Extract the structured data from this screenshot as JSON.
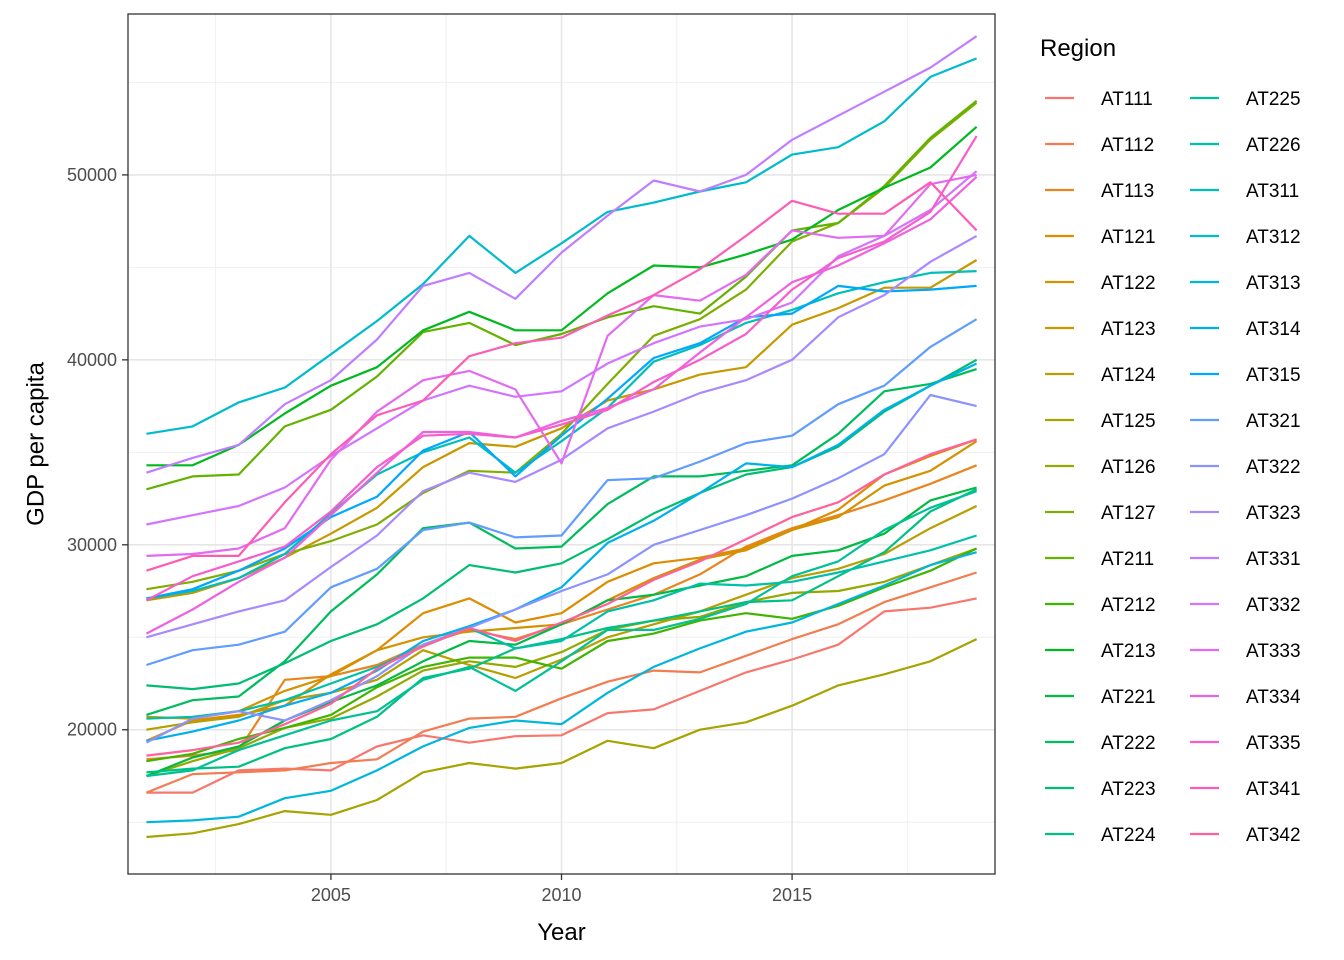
{
  "chart_data": {
    "type": "line",
    "xlabel": "Year",
    "ylabel": "GDP per capita",
    "legend_title": "Region",
    "legend_position": "right",
    "xlim": [
      2000.6,
      2019.4
    ],
    "ylim": [
      12200,
      58700
    ],
    "x_ticks": [
      2005,
      2010,
      2015
    ],
    "y_ticks": [
      20000,
      30000,
      40000,
      50000
    ],
    "grid": true,
    "x": [
      2001,
      2002,
      2003,
      2004,
      2005,
      2006,
      2007,
      2008,
      2009,
      2010,
      2011,
      2012,
      2013,
      2014,
      2015,
      2016,
      2017,
      2018,
      2019
    ],
    "series": [
      {
        "name": "AT111",
        "color": "#F8766D",
        "values": [
          16600,
          16600,
          17800,
          17900,
          17800,
          19100,
          19700,
          19300,
          19650,
          19700,
          20900,
          21100,
          22100,
          23100,
          23800,
          24600,
          26400,
          26600,
          27100
        ]
      },
      {
        "name": "AT112",
        "color": "#F17D51",
        "values": [
          16600,
          17600,
          17700,
          17800,
          18200,
          18400,
          19900,
          20600,
          20700,
          21700,
          22600,
          23200,
          23100,
          24000,
          24900,
          25700,
          26900,
          27700,
          28500
        ]
      },
      {
        "name": "AT113",
        "color": "#E8851E",
        "values": [
          18400,
          18600,
          18900,
          22700,
          22900,
          23500,
          24600,
          25400,
          24900,
          25700,
          26500,
          27300,
          28400,
          29900,
          30900,
          31600,
          32400,
          33300,
          34300
        ]
      },
      {
        "name": "AT121",
        "color": "#DE8C00",
        "values": [
          19400,
          20500,
          20800,
          21300,
          23000,
          24300,
          26300,
          27100,
          25800,
          26300,
          28000,
          29000,
          29300,
          29800,
          30800,
          31900,
          33800,
          34800,
          35700
        ]
      },
      {
        "name": "AT122",
        "color": "#D39200",
        "values": [
          20700,
          20600,
          21000,
          22100,
          22900,
          24300,
          25000,
          25300,
          25500,
          25700,
          27000,
          28200,
          29200,
          29700,
          30800,
          31500,
          33200,
          34000,
          35600
        ]
      },
      {
        "name": "AT123",
        "color": "#C69900",
        "values": [
          27000,
          27400,
          28200,
          29300,
          30600,
          32000,
          34200,
          35500,
          35300,
          36300,
          37800,
          38400,
          39200,
          39600,
          41900,
          42800,
          43900,
          43900,
          45400
        ]
      },
      {
        "name": "AT124",
        "color": "#B79F00",
        "values": [
          20000,
          20400,
          20700,
          21600,
          22000,
          22700,
          24300,
          23500,
          22800,
          23800,
          25000,
          25700,
          26400,
          27300,
          28200,
          28700,
          29500,
          30900,
          32100
        ]
      },
      {
        "name": "AT125",
        "color": "#A7A300",
        "values": [
          14200,
          14400,
          14900,
          15600,
          15400,
          16200,
          17700,
          18200,
          17900,
          18200,
          19400,
          19000,
          20000,
          20400,
          21300,
          22400,
          23000,
          23700,
          24900
        ]
      },
      {
        "name": "AT126",
        "color": "#94A900",
        "values": [
          17500,
          18300,
          19000,
          20100,
          20600,
          21800,
          23200,
          23700,
          23400,
          24200,
          25400,
          25900,
          26100,
          26900,
          27400,
          27500,
          28000,
          28900,
          29800
        ]
      },
      {
        "name": "AT127",
        "color": "#7FAE00",
        "values": [
          27600,
          28000,
          28600,
          29500,
          30200,
          31100,
          32800,
          34000,
          33900,
          36000,
          38700,
          41300,
          42200,
          43800,
          46400,
          47400,
          49300,
          51900,
          53900
        ]
      },
      {
        "name": "AT211",
        "color": "#64B200",
        "values": [
          33000,
          33700,
          33800,
          36400,
          37300,
          39100,
          41500,
          42000,
          40800,
          41400,
          42300,
          42900,
          42500,
          44500,
          47000,
          47400,
          49400,
          52000,
          54000
        ]
      },
      {
        "name": "AT212",
        "color": "#3EB500",
        "values": [
          18300,
          18700,
          19500,
          20100,
          20800,
          22300,
          23400,
          23900,
          23900,
          23300,
          24800,
          25200,
          25900,
          26300,
          26000,
          26700,
          27700,
          28600,
          29800
        ]
      },
      {
        "name": "AT213",
        "color": "#00B81F",
        "values": [
          34300,
          34300,
          35400,
          37100,
          38600,
          39600,
          41600,
          42600,
          41600,
          41600,
          43600,
          45100,
          45000,
          45700,
          46500,
          48100,
          49300,
          50400,
          52600
        ]
      },
      {
        "name": "AT221",
        "color": "#00BA42",
        "values": [
          17500,
          18500,
          19100,
          20500,
          21500,
          22400,
          23700,
          24800,
          24600,
          25700,
          27000,
          27300,
          27800,
          28300,
          29400,
          29700,
          30600,
          32400,
          33100
        ]
      },
      {
        "name": "AT222",
        "color": "#00BC5C",
        "values": [
          20800,
          21600,
          21800,
          23700,
          26400,
          28400,
          30900,
          31200,
          29800,
          29900,
          32200,
          33700,
          33700,
          34000,
          34300,
          36000,
          38300,
          38700,
          39500
        ]
      },
      {
        "name": "AT223",
        "color": "#00BE71",
        "values": [
          22400,
          22200,
          22500,
          23600,
          24800,
          25700,
          27100,
          28900,
          28500,
          29000,
          30300,
          31700,
          32800,
          33800,
          34200,
          35300,
          37200,
          38600,
          40000
        ]
      },
      {
        "name": "AT224",
        "color": "#00C084",
        "values": [
          17700,
          17900,
          18000,
          19000,
          19500,
          20700,
          22800,
          23300,
          24400,
          24900,
          25500,
          25900,
          26400,
          26900,
          27000,
          28300,
          29600,
          31800,
          33000
        ]
      },
      {
        "name": "AT225",
        "color": "#00C196",
        "values": [
          17500,
          17800,
          18900,
          19700,
          20500,
          21000,
          22700,
          23400,
          22100,
          23700,
          25400,
          25400,
          26000,
          26800,
          28300,
          29100,
          30800,
          32000,
          32900
        ]
      },
      {
        "name": "AT226",
        "color": "#00C0A8",
        "values": [
          20600,
          20700,
          21000,
          21600,
          22500,
          23400,
          24500,
          25500,
          24400,
          24800,
          26400,
          27000,
          27900,
          27800,
          28000,
          28500,
          29100,
          29700,
          30500
        ]
      },
      {
        "name": "AT311",
        "color": "#00BEBA",
        "values": [
          27100,
          27500,
          28200,
          29500,
          31700,
          33800,
          35000,
          35800,
          33900,
          35600,
          37400,
          39900,
          40800,
          42000,
          42700,
          43600,
          44200,
          44700,
          44800
        ]
      },
      {
        "name": "AT312",
        "color": "#00BBCC",
        "values": [
          36000,
          36400,
          37700,
          38500,
          40300,
          42100,
          44100,
          46700,
          44700,
          46300,
          48000,
          48500,
          49100,
          49600,
          51100,
          51500,
          52900,
          55300,
          56300
        ]
      },
      {
        "name": "AT313",
        "color": "#00B6DD",
        "values": [
          15000,
          15100,
          15300,
          16300,
          16700,
          17800,
          19100,
          20100,
          20500,
          20300,
          22000,
          23400,
          24400,
          25300,
          25800,
          26800,
          27800,
          28900,
          29600
        ]
      },
      {
        "name": "AT314",
        "color": "#00B0ED",
        "values": [
          19400,
          19900,
          20500,
          21300,
          22000,
          23200,
          24800,
          25600,
          26500,
          27700,
          30100,
          31300,
          32800,
          34400,
          34200,
          35400,
          37300,
          38600,
          39800
        ]
      },
      {
        "name": "AT315",
        "color": "#00A7FF",
        "values": [
          27100,
          27600,
          28600,
          29800,
          31500,
          32600,
          35100,
          36100,
          33700,
          35900,
          37900,
          40100,
          40900,
          42300,
          42500,
          44000,
          43700,
          43800,
          44000
        ]
      },
      {
        "name": "AT321",
        "color": "#619CFF",
        "values": [
          23500,
          24300,
          24600,
          25300,
          27700,
          28700,
          30800,
          31200,
          30400,
          30500,
          33500,
          33600,
          34500,
          35500,
          35900,
          37600,
          38600,
          40700,
          42200
        ]
      },
      {
        "name": "AT322",
        "color": "#8B93FF",
        "values": [
          19300,
          20600,
          21000,
          20500,
          21600,
          22900,
          24600,
          25500,
          26500,
          27500,
          28400,
          30000,
          30800,
          31600,
          32500,
          33600,
          34900,
          38100,
          37500
        ]
      },
      {
        "name": "AT323",
        "color": "#A989FF",
        "values": [
          25000,
          25700,
          26400,
          27000,
          28800,
          30500,
          32900,
          33900,
          33400,
          34600,
          36300,
          37200,
          38200,
          38900,
          40000,
          42300,
          43500,
          45300,
          46700
        ]
      },
      {
        "name": "AT331",
        "color": "#C07EFF",
        "values": [
          33900,
          34700,
          35400,
          37600,
          38900,
          41100,
          44000,
          44700,
          43300,
          45800,
          47800,
          49700,
          49100,
          50000,
          51900,
          53200,
          54500,
          55800,
          57500
        ]
      },
      {
        "name": "AT332",
        "color": "#D374FF",
        "values": [
          31100,
          31600,
          32100,
          33100,
          34800,
          36300,
          37800,
          38600,
          38000,
          38300,
          39800,
          40900,
          41800,
          42200,
          43100,
          45600,
          46700,
          48100,
          50200
        ]
      },
      {
        "name": "AT333",
        "color": "#E26BF2",
        "values": [
          29400,
          29500,
          29800,
          30900,
          34600,
          37200,
          38900,
          39400,
          38400,
          34400,
          41300,
          43500,
          43200,
          44600,
          47000,
          46600,
          46700,
          49500,
          50000
        ]
      },
      {
        "name": "AT334",
        "color": "#EE62E0",
        "values": [
          25200,
          26500,
          28000,
          29300,
          31600,
          33900,
          36100,
          36100,
          35800,
          36700,
          37400,
          38400,
          40400,
          42300,
          44200,
          45100,
          46300,
          47600,
          49900
        ]
      },
      {
        "name": "AT335",
        "color": "#F75DCB",
        "values": [
          27000,
          28300,
          29100,
          29900,
          31800,
          34200,
          35900,
          36000,
          35800,
          36500,
          37300,
          38800,
          40000,
          41400,
          43800,
          45500,
          46400,
          48000,
          52100
        ]
      },
      {
        "name": "AT341",
        "color": "#FD5CB4",
        "values": [
          28600,
          29400,
          29400,
          32300,
          34900,
          37000,
          37800,
          40200,
          40900,
          41200,
          42400,
          43500,
          44900,
          46700,
          48600,
          47900,
          47900,
          49600,
          47000
        ]
      },
      {
        "name": "AT342",
        "color": "#FF619C",
        "values": [
          18600,
          18900,
          19300,
          20300,
          21400,
          23300,
          24500,
          25500,
          24800,
          25800,
          26800,
          28100,
          29100,
          30300,
          31500,
          32300,
          33800,
          34900,
          35700
        ]
      }
    ]
  }
}
